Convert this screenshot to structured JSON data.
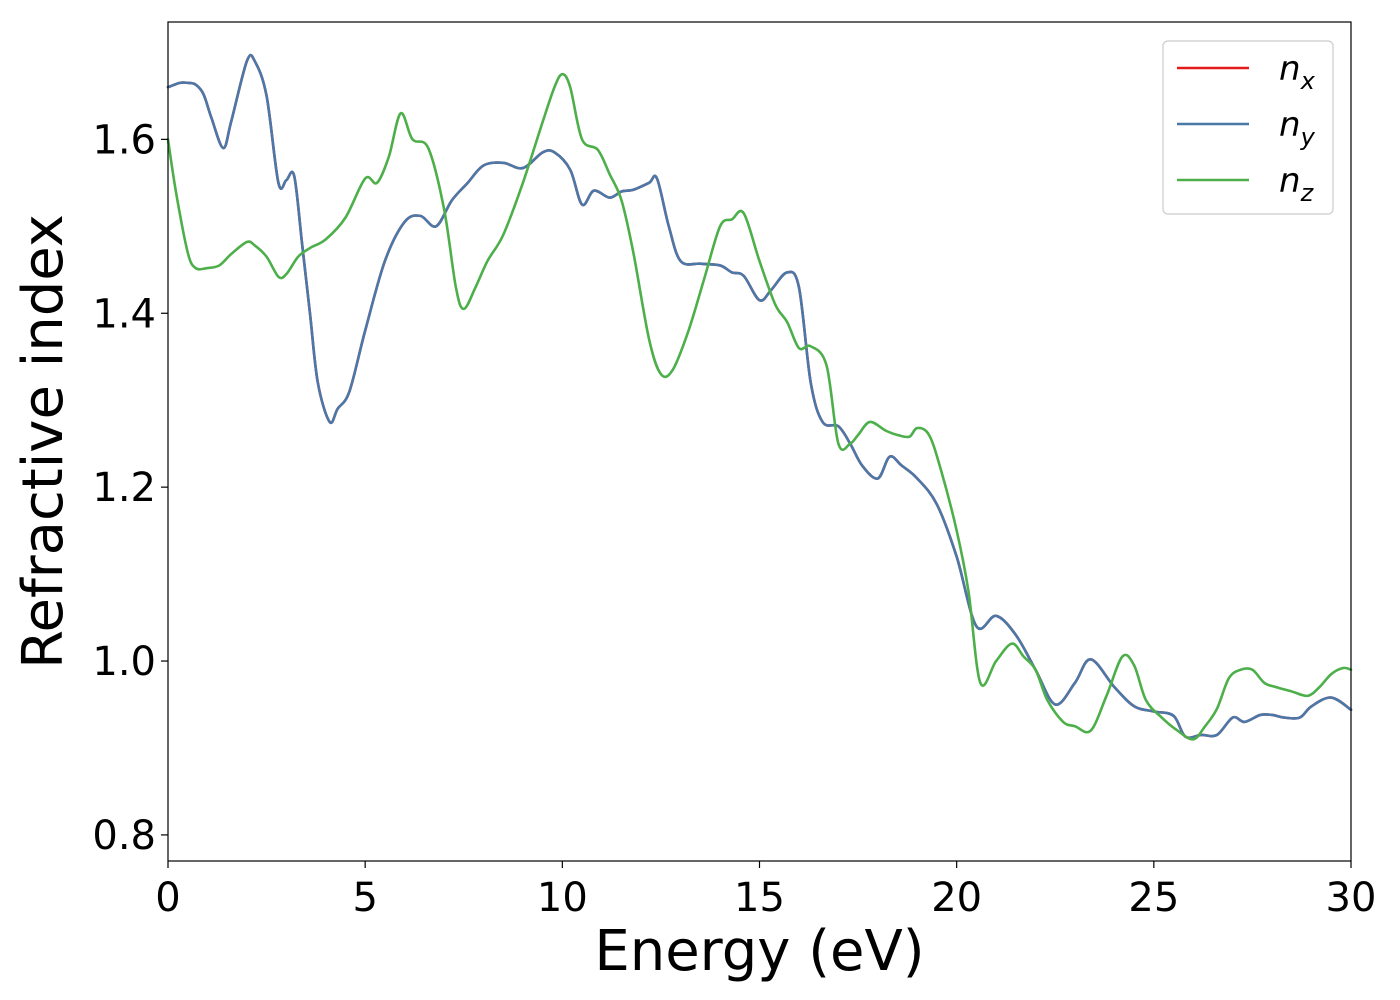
{
  "chart_data": {
    "type": "line",
    "title": "",
    "xlabel": "Energy (eV)",
    "ylabel": "Refractive index",
    "xlim": [
      0,
      30
    ],
    "ylim": [
      0.77,
      1.735
    ],
    "xticks": [
      "0",
      "5",
      "10",
      "15",
      "20",
      "25",
      "30"
    ],
    "yticks": [
      "0.8",
      "1.0",
      "1.2",
      "1.4",
      "1.6"
    ],
    "grid": false,
    "legend_position": "top-right",
    "series": [
      {
        "name": "n_x",
        "label_main": "n",
        "label_sub": "x",
        "color": "#e41a1c",
        "x": [
          0,
          0.3,
          0.5,
          0.7,
          0.9,
          1.1,
          1.4,
          1.6,
          2.0,
          2.2,
          2.5,
          2.8,
          3.0,
          3.2,
          3.4,
          3.6,
          3.8,
          4.1,
          4.3,
          4.6,
          5.0,
          5.5,
          6.0,
          6.4,
          6.8,
          7.2,
          7.6,
          8.0,
          8.5,
          9.0,
          9.5,
          9.8,
          10.2,
          10.5,
          10.8,
          11.2,
          11.5,
          11.8,
          12.2,
          12.4,
          12.7,
          13.0,
          13.5,
          14.0,
          14.3,
          14.6,
          15.0,
          15.3,
          15.7,
          16.0,
          16.3,
          16.6,
          17.0,
          17.3,
          17.6,
          18.0,
          18.3,
          18.6,
          19.0,
          19.5,
          20.0,
          20.5,
          21.0,
          21.5,
          22.0,
          22.5,
          23.0,
          23.4,
          24.0,
          24.5,
          25.0,
          25.5,
          25.8,
          26.2,
          26.6,
          27.0,
          27.3,
          27.7,
          28.0,
          28.3,
          28.7,
          29.0,
          29.5,
          30.0
        ],
        "values": [
          1.66,
          1.665,
          1.665,
          1.663,
          1.652,
          1.625,
          1.59,
          1.62,
          1.69,
          1.69,
          1.65,
          1.55,
          1.553,
          1.558,
          1.48,
          1.4,
          1.32,
          1.275,
          1.29,
          1.31,
          1.38,
          1.46,
          1.505,
          1.512,
          1.5,
          1.53,
          1.55,
          1.57,
          1.573,
          1.567,
          1.585,
          1.585,
          1.565,
          1.525,
          1.541,
          1.533,
          1.54,
          1.542,
          1.55,
          1.555,
          1.5,
          1.46,
          1.457,
          1.455,
          1.447,
          1.443,
          1.415,
          1.427,
          1.447,
          1.43,
          1.32,
          1.275,
          1.27,
          1.25,
          1.225,
          1.21,
          1.235,
          1.225,
          1.21,
          1.18,
          1.12,
          1.04,
          1.052,
          1.03,
          0.99,
          0.95,
          0.975,
          1.002,
          0.97,
          0.948,
          0.942,
          0.937,
          0.913,
          0.915,
          0.915,
          0.935,
          0.93,
          0.938,
          0.938,
          0.935,
          0.935,
          0.948,
          0.958,
          0.944
        ]
      },
      {
        "name": "n_y",
        "label_main": "n",
        "label_sub": "y",
        "color": "#4a78a8",
        "x": [
          0,
          0.3,
          0.5,
          0.7,
          0.9,
          1.1,
          1.4,
          1.6,
          2.0,
          2.2,
          2.5,
          2.8,
          3.0,
          3.2,
          3.4,
          3.6,
          3.8,
          4.1,
          4.3,
          4.6,
          5.0,
          5.5,
          6.0,
          6.4,
          6.8,
          7.2,
          7.6,
          8.0,
          8.5,
          9.0,
          9.5,
          9.8,
          10.2,
          10.5,
          10.8,
          11.2,
          11.5,
          11.8,
          12.2,
          12.4,
          12.7,
          13.0,
          13.5,
          14.0,
          14.3,
          14.6,
          15.0,
          15.3,
          15.7,
          16.0,
          16.3,
          16.6,
          17.0,
          17.3,
          17.6,
          18.0,
          18.3,
          18.6,
          19.0,
          19.5,
          20.0,
          20.5,
          21.0,
          21.5,
          22.0,
          22.5,
          23.0,
          23.4,
          24.0,
          24.5,
          25.0,
          25.5,
          25.8,
          26.2,
          26.6,
          27.0,
          27.3,
          27.7,
          28.0,
          28.3,
          28.7,
          29.0,
          29.5,
          30.0
        ],
        "values": [
          1.66,
          1.665,
          1.665,
          1.663,
          1.652,
          1.625,
          1.59,
          1.62,
          1.69,
          1.69,
          1.65,
          1.55,
          1.553,
          1.558,
          1.48,
          1.4,
          1.32,
          1.275,
          1.29,
          1.31,
          1.38,
          1.46,
          1.505,
          1.512,
          1.5,
          1.53,
          1.55,
          1.57,
          1.573,
          1.567,
          1.585,
          1.585,
          1.565,
          1.525,
          1.541,
          1.533,
          1.54,
          1.542,
          1.55,
          1.555,
          1.5,
          1.46,
          1.457,
          1.455,
          1.447,
          1.443,
          1.415,
          1.427,
          1.447,
          1.43,
          1.32,
          1.275,
          1.27,
          1.25,
          1.225,
          1.21,
          1.235,
          1.225,
          1.21,
          1.18,
          1.12,
          1.04,
          1.052,
          1.03,
          0.99,
          0.95,
          0.975,
          1.002,
          0.97,
          0.948,
          0.942,
          0.937,
          0.913,
          0.915,
          0.915,
          0.935,
          0.93,
          0.938,
          0.938,
          0.935,
          0.935,
          0.948,
          0.958,
          0.944
        ]
      },
      {
        "name": "n_z",
        "label_main": "n",
        "label_sub": "z",
        "color": "#4daf4a",
        "x": [
          0,
          0.2,
          0.5,
          0.7,
          1.0,
          1.3,
          1.6,
          2.0,
          2.2,
          2.5,
          2.8,
          3.0,
          3.3,
          3.6,
          4.0,
          4.5,
          5.0,
          5.3,
          5.6,
          5.9,
          6.2,
          6.6,
          7.0,
          7.3,
          7.5,
          7.8,
          8.1,
          8.5,
          9.0,
          9.5,
          9.8,
          10.0,
          10.2,
          10.5,
          10.9,
          11.2,
          11.5,
          11.8,
          12.2,
          12.5,
          12.8,
          13.2,
          13.6,
          14.0,
          14.3,
          14.6,
          15.0,
          15.4,
          15.7,
          16.0,
          16.3,
          16.7,
          17.0,
          17.3,
          17.5,
          17.8,
          18.2,
          18.5,
          18.8,
          19.0,
          19.3,
          19.6,
          20.0,
          20.3,
          20.6,
          21.0,
          21.4,
          21.7,
          22.0,
          22.3,
          22.7,
          23.0,
          23.4,
          23.8,
          24.2,
          24.5,
          24.8,
          25.2,
          25.6,
          26.0,
          26.3,
          26.6,
          26.9,
          27.2,
          27.5,
          27.8,
          28.1,
          28.5,
          28.9,
          29.2,
          29.5,
          29.8,
          30.0
        ],
        "values": [
          1.6,
          1.54,
          1.47,
          1.452,
          1.452,
          1.455,
          1.468,
          1.482,
          1.478,
          1.465,
          1.442,
          1.445,
          1.465,
          1.475,
          1.485,
          1.51,
          1.555,
          1.55,
          1.58,
          1.63,
          1.6,
          1.59,
          1.52,
          1.43,
          1.405,
          1.43,
          1.46,
          1.49,
          1.55,
          1.62,
          1.66,
          1.675,
          1.66,
          1.6,
          1.588,
          1.56,
          1.53,
          1.47,
          1.37,
          1.33,
          1.335,
          1.38,
          1.44,
          1.5,
          1.508,
          1.515,
          1.46,
          1.41,
          1.39,
          1.36,
          1.362,
          1.34,
          1.25,
          1.25,
          1.26,
          1.275,
          1.265,
          1.26,
          1.258,
          1.268,
          1.26,
          1.22,
          1.15,
          1.08,
          0.975,
          1.0,
          1.02,
          1.005,
          0.99,
          0.955,
          0.93,
          0.925,
          0.92,
          0.96,
          1.005,
          0.995,
          0.955,
          0.935,
          0.92,
          0.91,
          0.925,
          0.945,
          0.98,
          0.99,
          0.99,
          0.975,
          0.97,
          0.965,
          0.96,
          0.97,
          0.985,
          0.992,
          0.99
        ]
      }
    ]
  }
}
